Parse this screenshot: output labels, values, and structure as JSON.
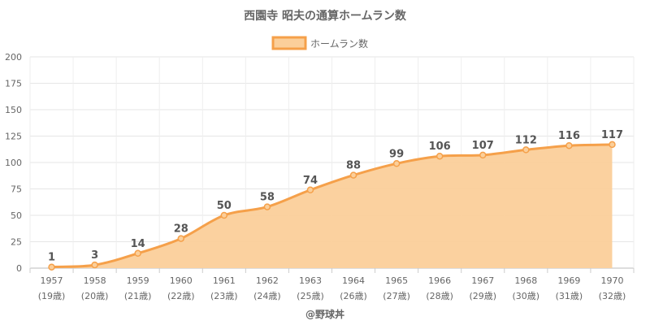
{
  "chart_data": {
    "type": "area",
    "title": "西園寺 昭夫の通算ホームラン数",
    "series": [
      {
        "name": "ホームラン数",
        "values": [
          1,
          3,
          14,
          28,
          50,
          58,
          74,
          88,
          99,
          106,
          107,
          112,
          116,
          117
        ]
      }
    ],
    "categories": [
      "1957",
      "1958",
      "1959",
      "1960",
      "1961",
      "1962",
      "1963",
      "1964",
      "1965",
      "1966",
      "1967",
      "1968",
      "1969",
      "1970"
    ],
    "category_sublabels": [
      "(19歳)",
      "(20歳)",
      "(21歳)",
      "(22歳)",
      "(23歳)",
      "(24歳)",
      "(25歳)",
      "(26歳)",
      "(27歳)",
      "(28歳)",
      "(29歳)",
      "(30歳)",
      "(31歳)",
      "(32歳)"
    ],
    "ylim": [
      0,
      200
    ],
    "yticks": [
      0,
      25,
      50,
      75,
      100,
      125,
      150,
      175,
      200
    ],
    "grid": true,
    "legend_position": "top-center",
    "colors": {
      "line": "#f5a04a",
      "fill": "#fbcf9a"
    },
    "credit": "@野球丼"
  }
}
